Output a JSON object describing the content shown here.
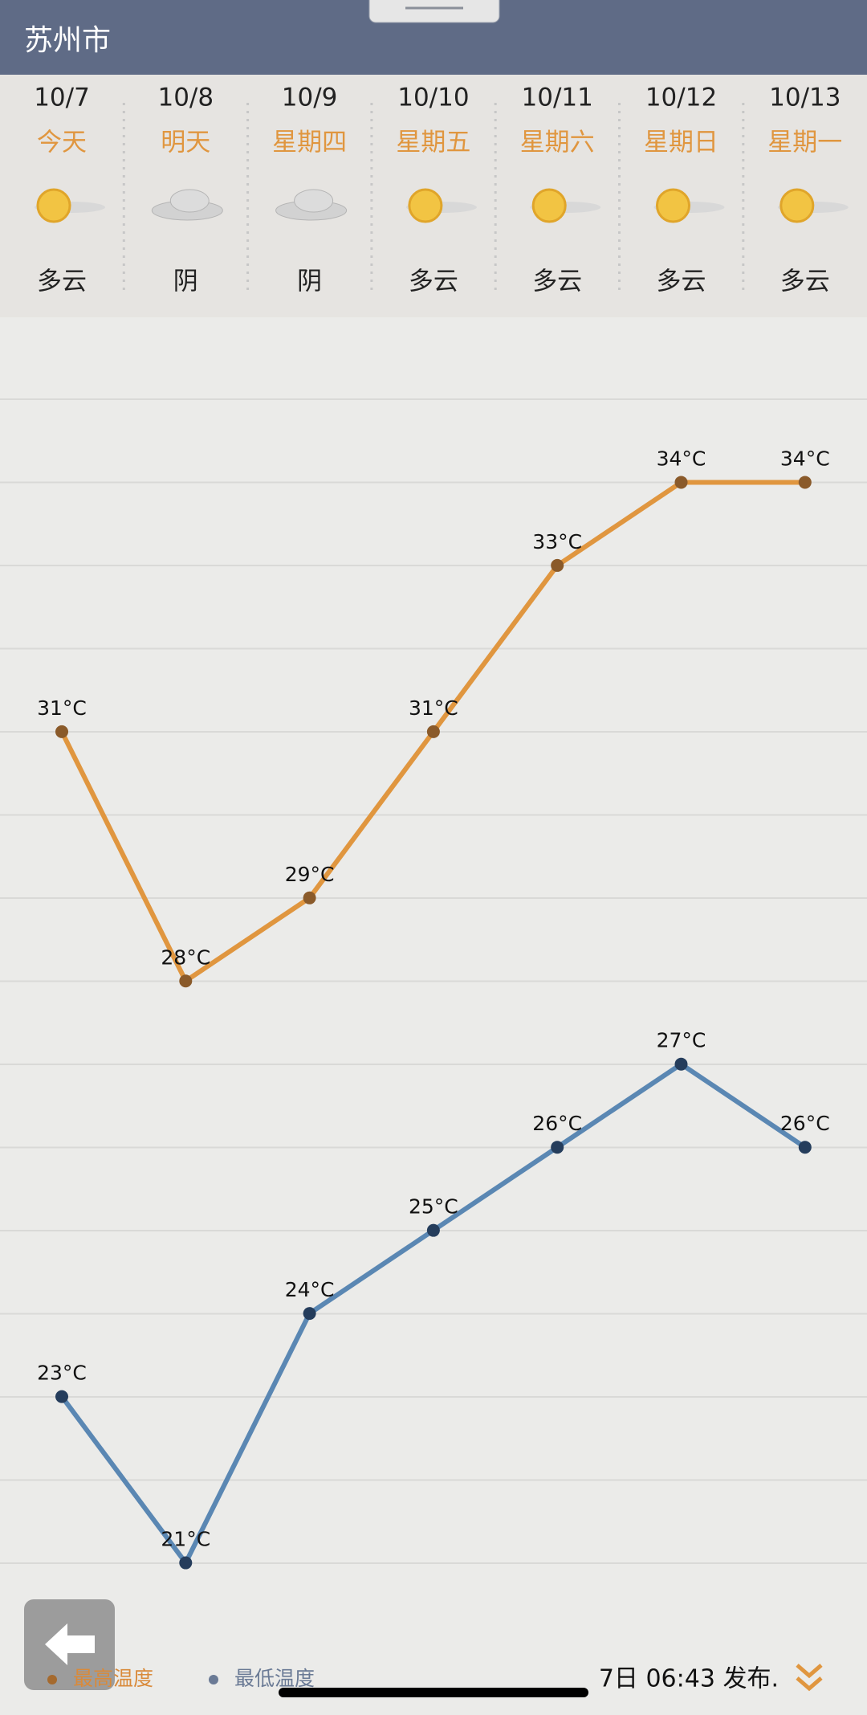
{
  "header": {
    "title": "苏州市"
  },
  "days": [
    {
      "name": "今天",
      "weather": "多云"
    },
    {
      "name": "明天",
      "weather": "阴"
    },
    {
      "name": "星期四",
      "weather": "阴"
    },
    {
      "name": "星期五",
      "weather": "多云"
    },
    {
      "name": "星期六",
      "weather": "多云"
    },
    {
      "name": "星期日",
      "weather": "多云"
    },
    {
      "name": "星期一",
      "weather": "多云"
    }
  ],
  "chart_data": {
    "type": "line",
    "categories": [
      "10/7",
      "10/8",
      "10/9",
      "10/10",
      "10/11",
      "10/12",
      "10/13"
    ],
    "ylim": [
      20,
      35
    ],
    "series": [
      {
        "name": "最高温度",
        "color": "#e0963f",
        "values": [
          31,
          28,
          29,
          31,
          33,
          34,
          34
        ],
        "value_labels": [
          "31°C",
          "28°C",
          "29°C",
          "31°C",
          "33°C",
          "34°C",
          "34°C"
        ]
      },
      {
        "name": "最低温度",
        "color": "#5a87b3",
        "values": [
          23,
          21,
          24,
          25,
          26,
          27,
          26
        ],
        "value_labels": [
          "23°C",
          "21°C",
          "24°C",
          "25°C",
          "26°C",
          "27°C",
          "26°C"
        ]
      }
    ]
  },
  "footer": {
    "published": "7日 06:43 发布."
  }
}
